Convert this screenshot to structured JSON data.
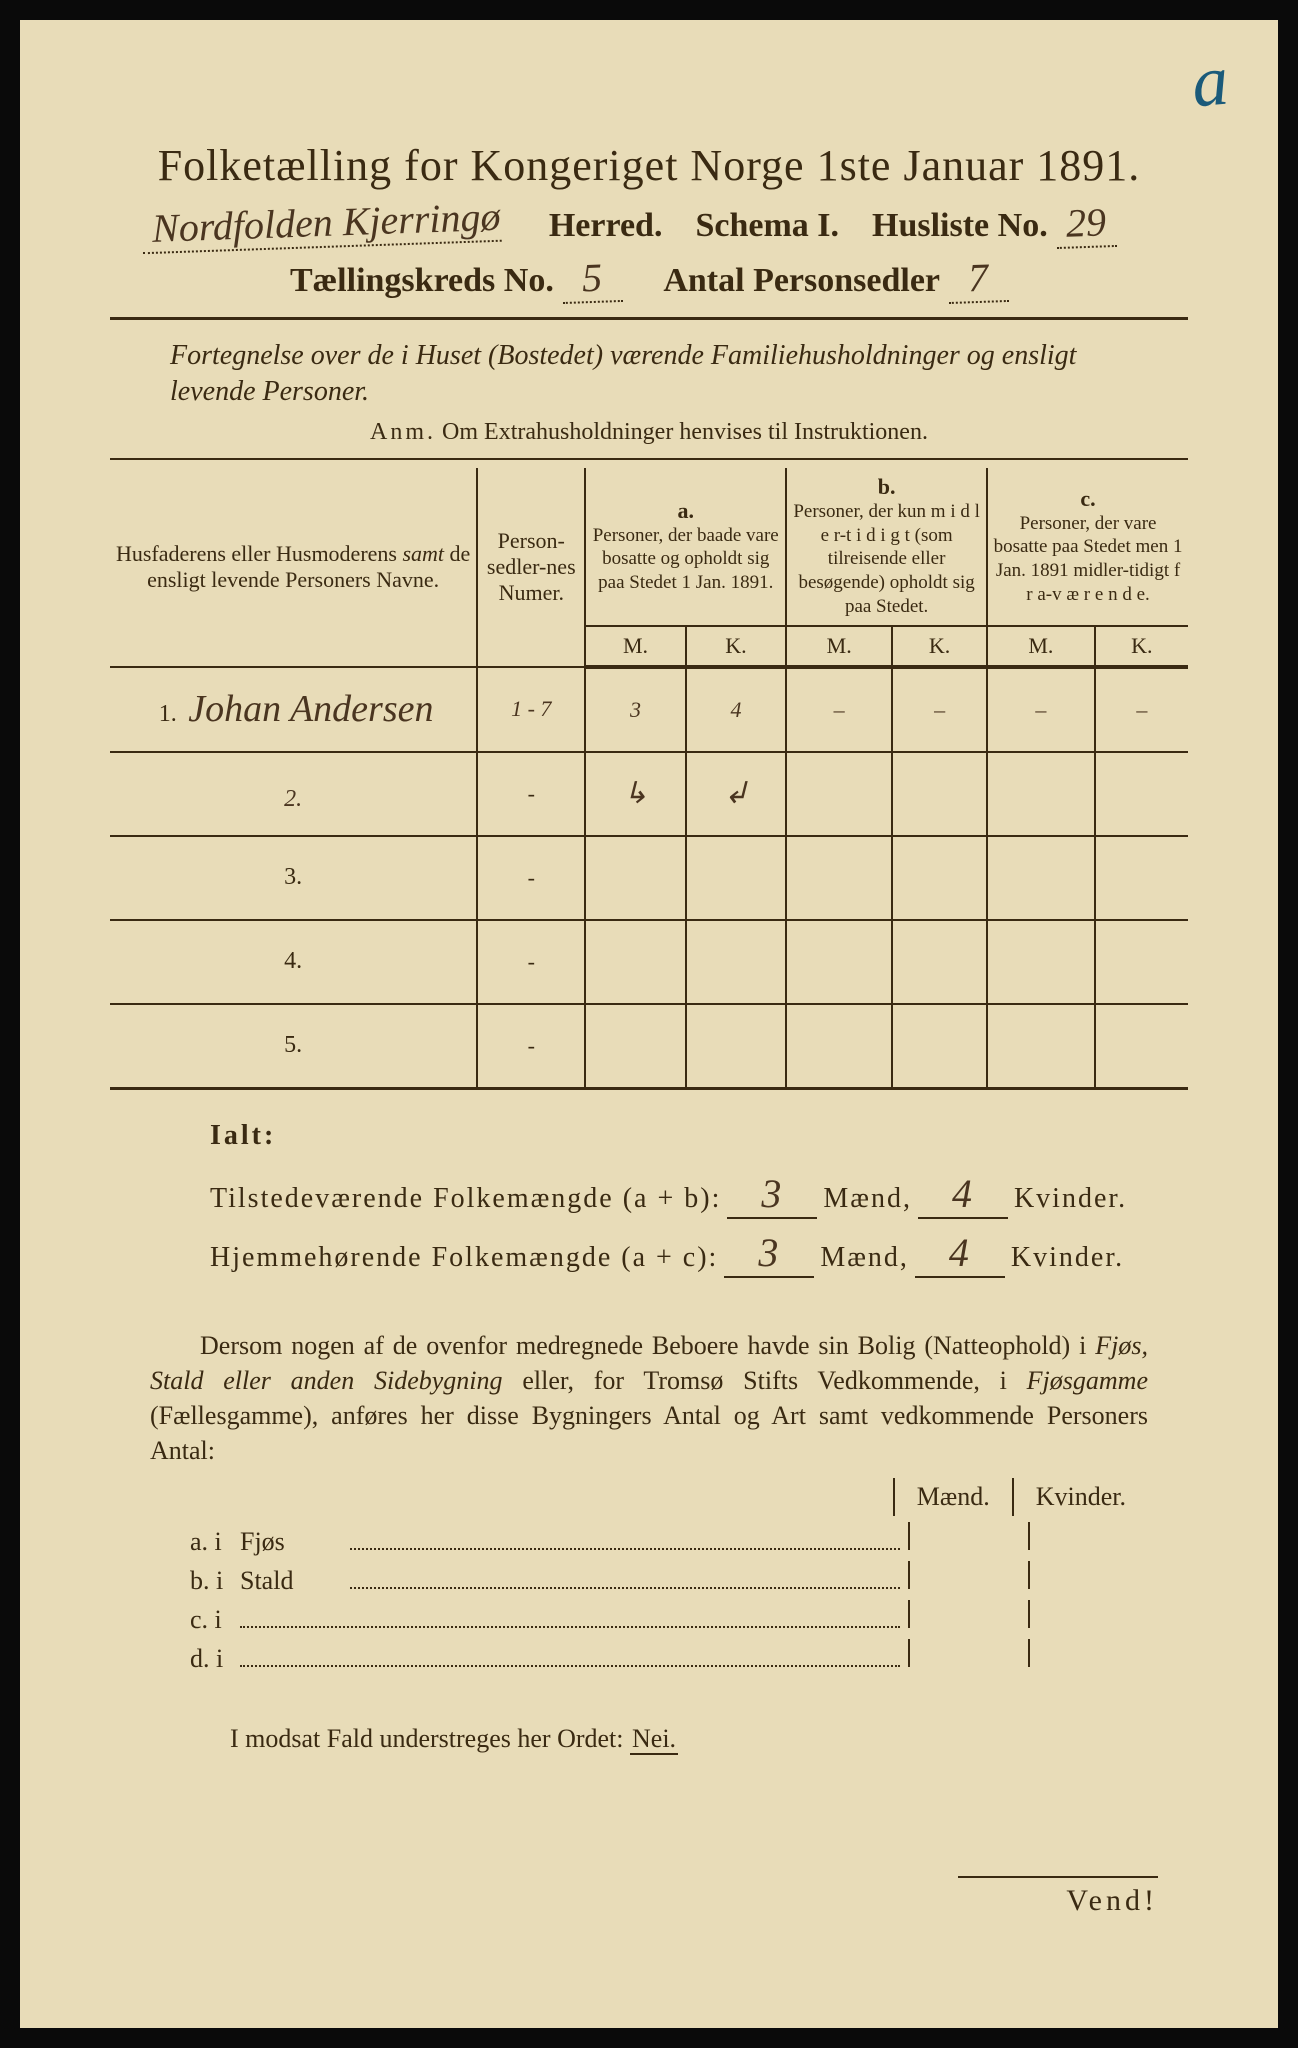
{
  "corner_mark": "a",
  "title": "Folketælling for Kongeriget Norge 1ste Januar 1891.",
  "header": {
    "herred_value": "Nordfolden Kjerringø",
    "herred_label": "Herred.",
    "schema_label": "Schema I.",
    "husliste_label": "Husliste No.",
    "husliste_value": "29",
    "kreds_label": "Tællingskreds No.",
    "kreds_value": "5",
    "antal_label": "Antal Personsedler",
    "antal_value": "7"
  },
  "subtitle": "Fortegnelse over de i Huset (Bostedet) værende Familiehusholdninger og ensligt levende Personer.",
  "anm_label": "Anm.",
  "anm_text": "Om Extrahusholdninger henvises til Instruktionen.",
  "table": {
    "col_name": "Husfaderens eller Husmoderens samt de ensligt levende Personers Navne.",
    "col_num": "Person-sedler-nes Numer.",
    "col_a_label": "a.",
    "col_a": "Personer, der baade vare bosatte og opholdt sig paa Stedet 1 Jan. 1891.",
    "col_b_label": "b.",
    "col_b": "Personer, der kun midlertidigt (som tilreisende eller besøgende) opholdt sig paa Stedet.",
    "col_c_label": "c.",
    "col_c": "Personer, der vare bosatte paa Stedet men 1 Jan. 1891 midlertidigt fraværende.",
    "m": "M.",
    "k": "K.",
    "rows": [
      {
        "n": "1.",
        "name": "Johan Andersen",
        "num": "1 - 7",
        "a_m": "3",
        "a_k": "4",
        "b_m": "–",
        "b_k": "–",
        "c_m": "–",
        "c_k": "–"
      },
      {
        "n": "2.",
        "name": "",
        "num": "-",
        "a_m": "↳",
        "a_k": "↲",
        "b_m": "",
        "b_k": "",
        "c_m": "",
        "c_k": ""
      },
      {
        "n": "3.",
        "name": "",
        "num": "-",
        "a_m": "",
        "a_k": "",
        "b_m": "",
        "b_k": "",
        "c_m": "",
        "c_k": ""
      },
      {
        "n": "4.",
        "name": "",
        "num": "-",
        "a_m": "",
        "a_k": "",
        "b_m": "",
        "b_k": "",
        "c_m": "",
        "c_k": ""
      },
      {
        "n": "5.",
        "name": "",
        "num": "-",
        "a_m": "",
        "a_k": "",
        "b_m": "",
        "b_k": "",
        "c_m": "",
        "c_k": ""
      }
    ]
  },
  "ialt": {
    "title": "Ialt:",
    "line1_label": "Tilstedeværende Folkemængde (a + b):",
    "line2_label": "Hjemmehørende Folkemængde (a + c):",
    "maend": "Mænd,",
    "kvinder": "Kvinder.",
    "l1_m": "3",
    "l1_k": "4",
    "l2_m": "3",
    "l2_k": "4"
  },
  "para": "Dersom nogen af de ovenfor medregnede Beboere havde sin Bolig (Natteophold) i Fjøs, Stald eller anden Sidebygning eller, for Tromsø Stifts Vedkommende, i Fjøsgamme (Fællesgamme), anføres her disse Bygningers Antal og Art samt vedkommende Personers Antal:",
  "mk": {
    "maend": "Mænd.",
    "kvinder": "Kvinder.",
    "rows": [
      {
        "label": "a. i",
        "name": "Fjøs"
      },
      {
        "label": "b. i",
        "name": "Stald"
      },
      {
        "label": "c. i",
        "name": ""
      },
      {
        "label": "d. i",
        "name": ""
      }
    ]
  },
  "nei_line": "I modsat Fald understreges her Ordet:",
  "nei": "Nei.",
  "vend": "Vend!",
  "colors": {
    "paper": "#e8dcb8",
    "ink": "#3a2a12",
    "handwriting": "#4a3520",
    "blue_pencil": "#1a5a7a",
    "frame": "#0a0a0a"
  }
}
